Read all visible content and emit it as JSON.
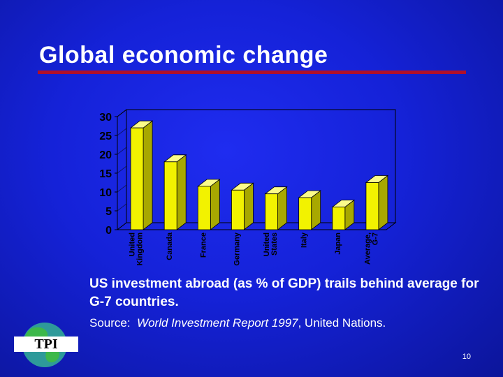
{
  "slide": {
    "title": "Global economic change",
    "caption": "US investment abroad (as % of GDP) trails behind average for G-7 countries.",
    "source_prefix": "Source:",
    "source_title": "World Investment Report 1997",
    "source_suffix": ", United Nations.",
    "page_number": "10",
    "logo_text": "TPI"
  },
  "colors": {
    "bar_front": "#f2f200",
    "bar_top": "#fbfb8a",
    "bar_side": "#a8a800",
    "title_rule": "#b0102a"
  },
  "chart_data": {
    "type": "bar",
    "categories": [
      [
        "United",
        "Kingdom"
      ],
      [
        "Canada"
      ],
      [
        "France"
      ],
      [
        "Germany"
      ],
      [
        "United",
        "States"
      ],
      [
        "Italy"
      ],
      [
        "Japan"
      ],
      [
        "Average,",
        "G-7"
      ]
    ],
    "values": [
      27,
      18,
      11.5,
      10.5,
      9.5,
      8.5,
      6,
      12.5
    ],
    "ylim": [
      0,
      30
    ],
    "yticks": [
      0,
      5,
      10,
      15,
      20,
      25,
      30
    ],
    "title": "",
    "xlabel": "",
    "ylabel": "",
    "grid": false,
    "legend": "none",
    "style": "3d"
  }
}
